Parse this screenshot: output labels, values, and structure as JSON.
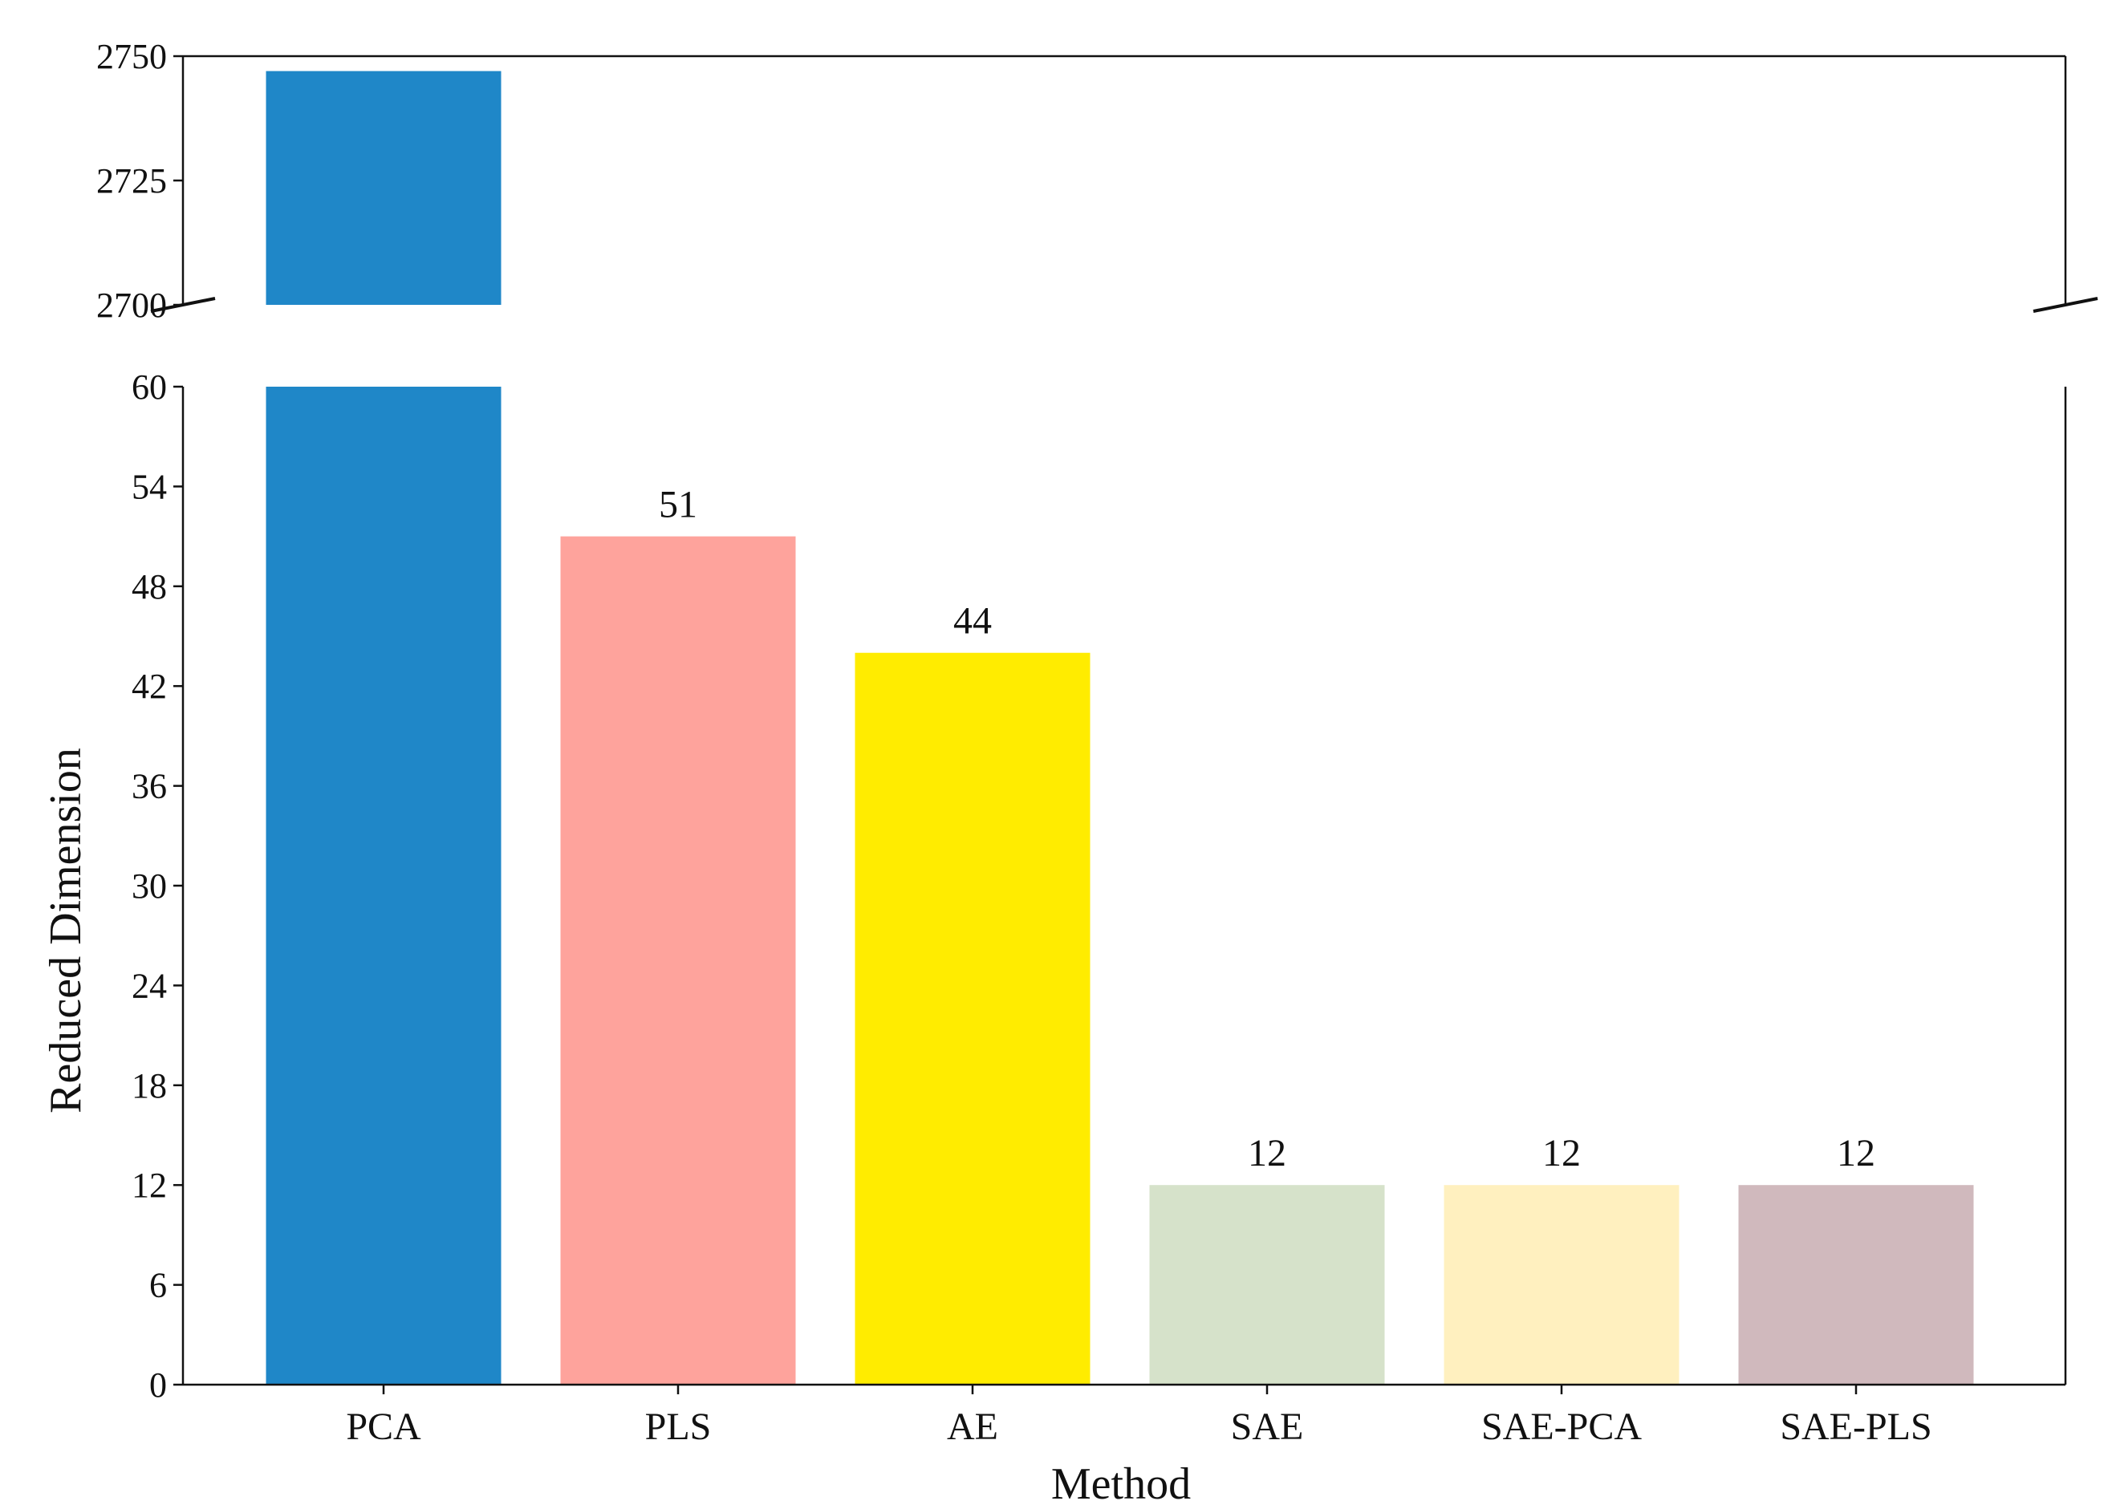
{
  "chart_data": {
    "type": "bar",
    "broken_axis": true,
    "categories": [
      "PCA",
      "PLS",
      "AE",
      "SAE",
      "SAE-PCA",
      "SAE-PLS"
    ],
    "values": [
      2747,
      51,
      44,
      12,
      12,
      12
    ],
    "value_labels": [
      "",
      "51",
      "44",
      "12",
      "12",
      "12"
    ],
    "colors": [
      "#1f87c8",
      "#fea39c",
      "#ffec00",
      "#d6e2ca",
      "#fff0bf",
      "#d0b9bd"
    ],
    "xlabel": "Method",
    "ylabel": "Reduced  Dimension",
    "upper_panel": {
      "ylim": [
        2700,
        2750
      ],
      "ticks": [
        "2700",
        "2725",
        "2750"
      ]
    },
    "lower_panel": {
      "ylim": [
        0,
        60
      ],
      "ticks": [
        "0",
        "6",
        "12",
        "18",
        "24",
        "30",
        "36",
        "42",
        "48",
        "54",
        "60"
      ]
    },
    "grid": false,
    "legend": "none"
  }
}
